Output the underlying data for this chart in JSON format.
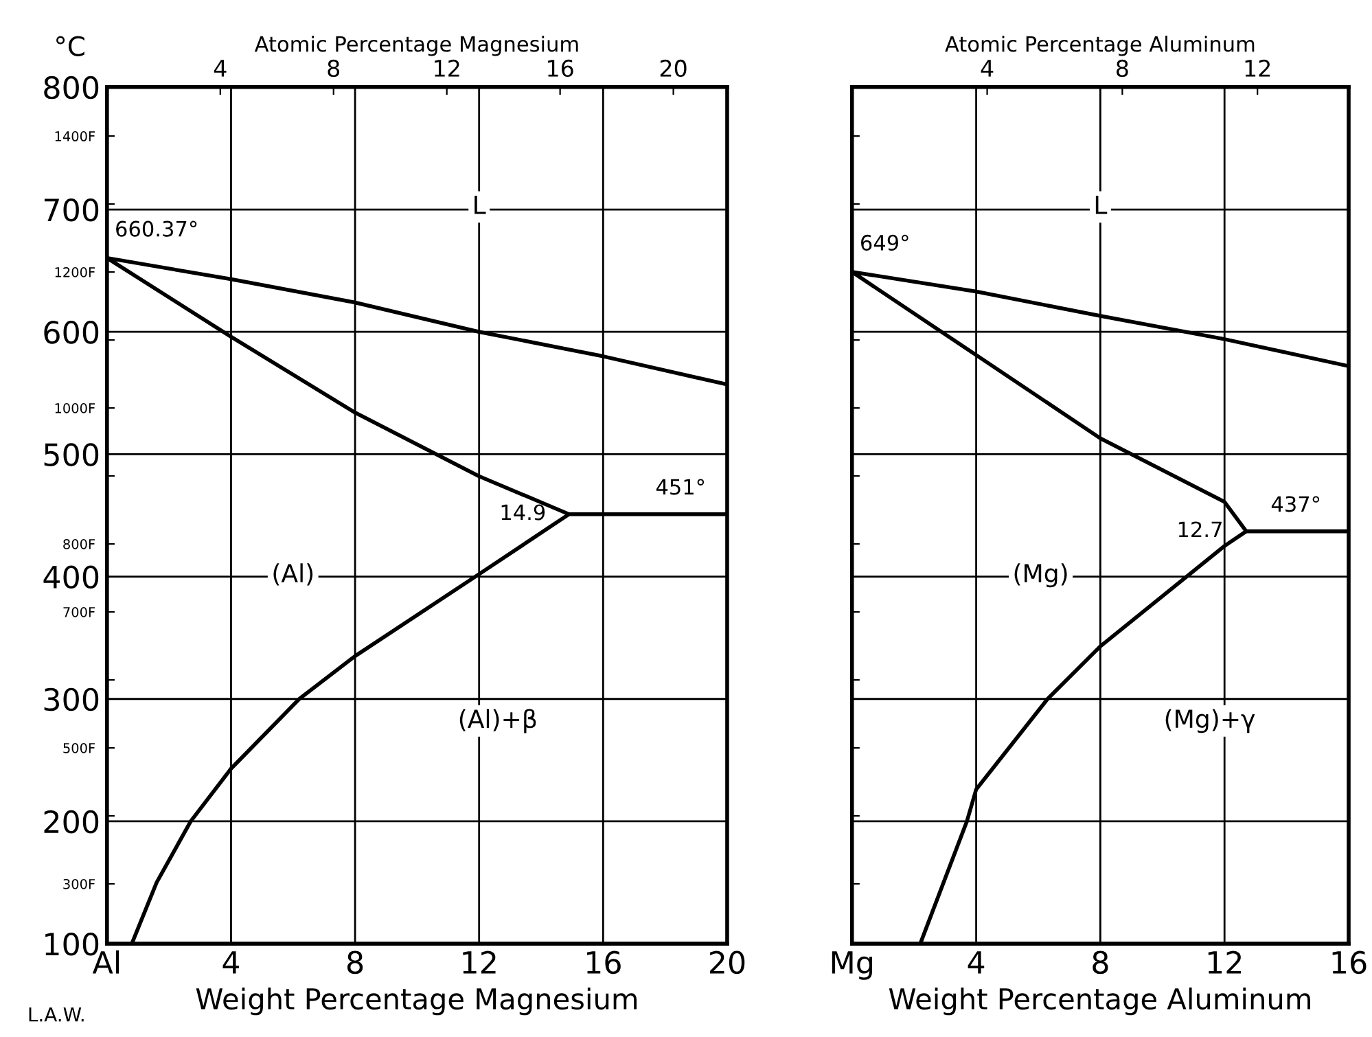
{
  "chart_data": [
    {
      "type": "line",
      "xlabel": "Weight Percentage Magnesium",
      "x2label": "Atomic Percentage Magnesium",
      "ylabel": "°C",
      "xlim": [
        0,
        20
      ],
      "xticks": [
        {
          "value": 0,
          "label": "Al"
        },
        4,
        8,
        12,
        16,
        20
      ],
      "x2lim": [
        0,
        21.9
      ],
      "x2ticks": [
        4,
        8,
        12,
        16,
        20
      ],
      "ylim": [
        100,
        800
      ],
      "yticks": [
        100,
        200,
        300,
        400,
        500,
        600,
        700,
        800
      ],
      "y2lim": [
        212,
        1472
      ],
      "y2ticks": [
        {
          "value": 300,
          "label": "300F"
        },
        {
          "value": 400,
          "label": null
        },
        {
          "value": 500,
          "label": "500F"
        },
        {
          "value": 600,
          "label": null
        },
        {
          "value": 700,
          "label": "700F"
        },
        {
          "value": 800,
          "label": "800F"
        },
        {
          "value": 900,
          "label": null
        },
        {
          "value": 1000,
          "label": "1000F"
        },
        {
          "value": 1100,
          "label": null
        },
        {
          "value": 1200,
          "label": "1200F"
        },
        {
          "value": 1300,
          "label": null
        },
        {
          "value": 1400,
          "label": "1400F"
        }
      ],
      "grid": true,
      "line_style": "solid",
      "series": [
        {
          "color": "#000000",
          "x": [
            20,
            16,
            12,
            8,
            4,
            0,
            4,
            8,
            12,
            14.9
          ],
          "values": [
            557,
            580,
            600,
            624,
            643,
            660.37,
            596,
            534,
            482,
            451
          ]
        },
        {
          "color": "#000000",
          "x": [
            20,
            14.9,
            12,
            8,
            6.2,
            4,
            2.7,
            1.6,
            0.8
          ],
          "values": [
            451,
            451,
            402,
            335,
            300,
            243,
            200,
            150,
            100
          ]
        }
      ],
      "annotations": [
        {
          "text": "660.37°",
          "x": 0,
          "y": 660.37
        },
        "L",
        "(Al)",
        {
          "text": "14.9",
          "x": 14.9,
          "y": 451
        },
        {
          "text": "451°",
          "x": 18.5,
          "y": 451
        },
        "(Al)+β",
        "L.A.W."
      ]
    },
    {
      "type": "line",
      "xlabel": "Weight Percentage Aluminum",
      "x2label": "Atomic Percentage Aluminum",
      "xlim": [
        0,
        16
      ],
      "xticks": [
        {
          "value": 0,
          "label": "Mg"
        },
        4,
        8,
        12,
        16
      ],
      "x2lim": [
        0,
        14.7
      ],
      "x2ticks": [
        4,
        8,
        12
      ],
      "ylim": [
        100,
        800
      ],
      "yticks": [
        {
          "value": 100,
          "label": null
        },
        {
          "value": 200,
          "label": null
        },
        {
          "value": 300,
          "label": null
        },
        {
          "value": 400,
          "label": null
        },
        {
          "value": 500,
          "label": null
        },
        {
          "value": 600,
          "label": null
        },
        {
          "value": 700,
          "label": null
        },
        {
          "value": 800,
          "label": null
        }
      ],
      "y2lim": [
        212,
        1472
      ],
      "y2ticks": [
        {
          "value": 300,
          "label": null
        },
        {
          "value": 400,
          "label": null
        },
        {
          "value": 500,
          "label": null
        },
        {
          "value": 600,
          "label": null
        },
        {
          "value": 700,
          "label": null
        },
        {
          "value": 800,
          "label": null
        },
        {
          "value": 900,
          "label": null
        },
        {
          "value": 1000,
          "label": null
        },
        {
          "value": 1100,
          "label": null
        },
        {
          "value": 1200,
          "label": null
        },
        {
          "value": 1300,
          "label": null
        },
        {
          "value": 1400,
          "label": null
        }
      ],
      "tick_labels": "x",
      "grid": true,
      "line_style": "solid",
      "series": [
        {
          "color": "#000000",
          "x": [
            16,
            12,
            8,
            4,
            0,
            4,
            8,
            12,
            12.7
          ],
          "values": [
            572,
            594,
            613,
            633,
            649,
            581,
            513,
            461,
            437
          ]
        },
        {
          "color": "#000000",
          "x": [
            16,
            12.7,
            12,
            8,
            6.3,
            4,
            3.7,
            2.2
          ],
          "values": [
            437,
            437,
            425,
            343,
            300,
            226,
            200,
            100
          ]
        }
      ],
      "annotations": [
        {
          "text": "649°",
          "x": 0,
          "y": 649
        },
        "L",
        "(Mg)",
        {
          "text": "12.7",
          "x": 12.7,
          "y": 437
        },
        {
          "text": "437°",
          "x": 14.3,
          "y": 437
        },
        "(Mg)+γ"
      ]
    }
  ]
}
